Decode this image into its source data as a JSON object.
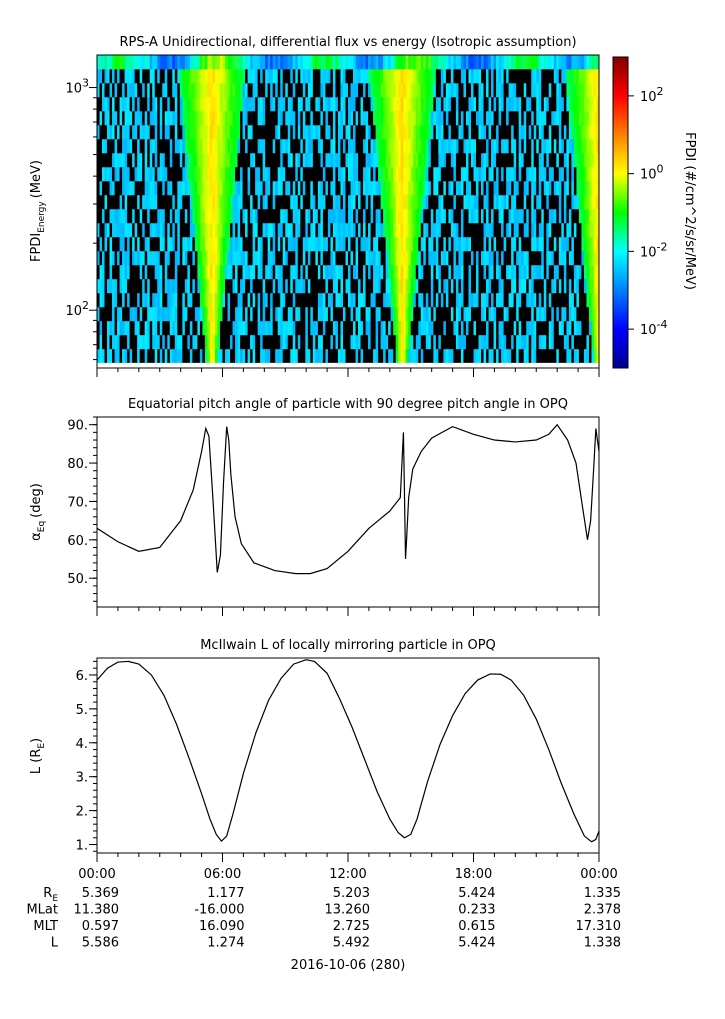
{
  "chart_data": [
    {
      "type": "heatmap",
      "title": "RPS-A Unidirectional, differential flux vs energy (Isotropic assumption)",
      "ylabel_main": "FPDI",
      "ylabel_sub": "Energy",
      "ylabel_unit": "(MeV)",
      "yscale": "log",
      "ylim": [
        55,
        1400
      ],
      "yticks": [
        {
          "value": 100,
          "base": "10",
          "exp": "2"
        },
        {
          "value": 1000,
          "base": "10",
          "exp": "3"
        }
      ],
      "colorbar": {
        "label": "FPDI (#/cm^2/s/sr/MeV)",
        "scale": "log",
        "range": [
          1e-05,
          1000.0
        ],
        "ticks": [
          {
            "value": 100,
            "base": "10",
            "exp": "2"
          },
          {
            "value": 1,
            "base": "10",
            "exp": "0"
          },
          {
            "value": 0.01,
            "base": "10",
            "exp": "-2"
          },
          {
            "value": 0.0001,
            "base": "10",
            "exp": "-4"
          }
        ]
      },
      "bright_bands_hours": [
        5.5,
        14.6,
        24.0
      ],
      "x_range_hours": [
        0,
        24
      ]
    },
    {
      "type": "line",
      "title": "Equatorial pitch angle of particle with 90 degree pitch angle in OPQ",
      "ylabel_main": "α",
      "ylabel_sub": "Eq",
      "ylabel_unit": "(deg)",
      "ylim": [
        42.5,
        92
      ],
      "yticks": [
        "50.",
        "60.",
        "70.",
        "80.",
        "90."
      ],
      "series": [
        {
          "x": [
            0,
            1,
            2,
            3,
            4,
            4.6,
            5.0,
            5.2,
            5.35,
            5.55,
            5.75,
            5.9,
            6.05,
            6.2,
            6.3,
            6.4,
            6.6,
            6.9,
            7.5,
            8.5,
            9.5,
            10.2,
            11,
            12,
            13,
            14,
            14.5,
            14.65,
            14.7,
            14.75,
            14.8,
            14.9,
            15.1,
            15.5,
            16,
            17,
            18,
            19,
            20,
            21,
            21.6,
            22,
            22.5,
            22.9,
            23.2,
            23.45,
            23.6,
            23.75,
            23.85,
            24
          ],
          "y": [
            63,
            59.5,
            57,
            58,
            65,
            73,
            83,
            89,
            87,
            70,
            51.5,
            56,
            75,
            89.5,
            86,
            77,
            66,
            59,
            54,
            52,
            51.2,
            51.2,
            52.5,
            57,
            63,
            67.5,
            71,
            88,
            72,
            55,
            60,
            71,
            78.5,
            83,
            86.5,
            89.5,
            87.5,
            86,
            85.5,
            86,
            87.5,
            90,
            86,
            80,
            69,
            60,
            65,
            79,
            89,
            83
          ]
        }
      ]
    },
    {
      "type": "line",
      "title": "McIlwain L of locally mirroring particle in OPQ",
      "ylabel_main": "L (R",
      "ylabel_sub": "E",
      "ylabel_unit": ")",
      "ylim": [
        0.75,
        6.5
      ],
      "yticks": [
        "1.",
        "2.",
        "3.",
        "4.",
        "5.",
        "6."
      ],
      "series": [
        {
          "x": [
            0,
            0.5,
            1,
            1.5,
            2,
            2.6,
            3.2,
            3.8,
            4.4,
            5.0,
            5.4,
            5.7,
            5.95,
            6.2,
            6.5,
            7.0,
            7.6,
            8.2,
            8.8,
            9.4,
            10.0,
            10.4,
            11.0,
            11.6,
            12.2,
            12.8,
            13.4,
            14.0,
            14.4,
            14.7,
            15.0,
            15.3,
            15.8,
            16.4,
            17.0,
            17.6,
            18.2,
            18.8,
            19.3,
            19.8,
            20.4,
            21.0,
            21.6,
            22.2,
            22.8,
            23.3,
            23.65,
            23.85,
            24
          ],
          "y": [
            5.85,
            6.2,
            6.38,
            6.4,
            6.32,
            6.0,
            5.4,
            4.55,
            3.55,
            2.5,
            1.75,
            1.3,
            1.1,
            1.25,
            1.9,
            3.1,
            4.3,
            5.25,
            5.9,
            6.32,
            6.45,
            6.4,
            6.05,
            5.3,
            4.45,
            3.5,
            2.55,
            1.75,
            1.35,
            1.2,
            1.3,
            1.75,
            2.85,
            3.95,
            4.8,
            5.45,
            5.85,
            6.03,
            6.02,
            5.85,
            5.4,
            4.7,
            3.8,
            2.8,
            1.9,
            1.25,
            1.08,
            1.15,
            1.4
          ]
        }
      ]
    }
  ],
  "x_axis": {
    "ticks": [
      "00:00",
      "06:00",
      "12:00",
      "18:00",
      "00:00"
    ],
    "date_label": "2016-10-06 (280)",
    "rows": [
      {
        "label_main": "R",
        "label_sub": "E",
        "values": [
          "5.369",
          "1.177",
          "5.203",
          "5.424",
          "1.335"
        ]
      },
      {
        "label_main": "MLat",
        "label_sub": "",
        "values": [
          "11.380",
          "-16.000",
          "13.260",
          "0.233",
          "2.378"
        ]
      },
      {
        "label_main": "MLT",
        "label_sub": "",
        "values": [
          "0.597",
          "16.090",
          "2.725",
          "0.615",
          "17.310"
        ]
      },
      {
        "label_main": "L",
        "label_sub": "",
        "values": [
          "5.586",
          "1.274",
          "5.492",
          "5.424",
          "1.338"
        ]
      }
    ]
  }
}
